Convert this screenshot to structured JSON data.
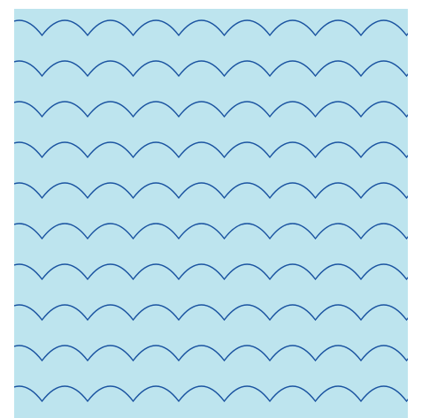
{
  "pattern": {
    "name": "scallop-wave-pattern",
    "background_color": "#bde4ee",
    "line_color": "#1a53a0",
    "row_count": 10,
    "arcs_per_row": 9
  }
}
